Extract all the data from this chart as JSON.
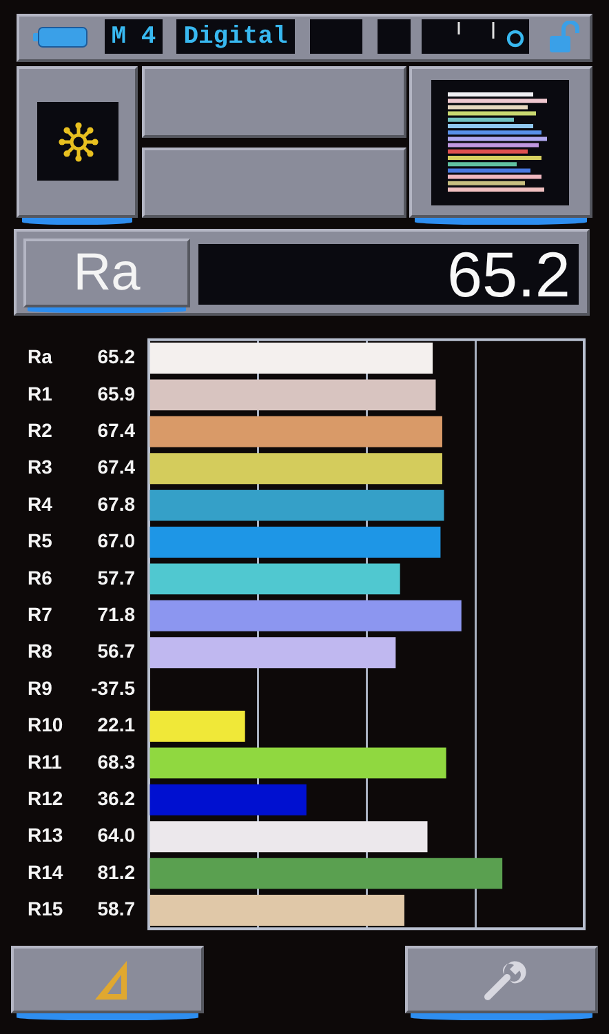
{
  "chart_data": {
    "type": "bar",
    "orientation": "horizontal",
    "categories": [
      "Ra",
      "R1",
      "R2",
      "R3",
      "R4",
      "R5",
      "R6",
      "R7",
      "R8",
      "R9",
      "R10",
      "R11",
      "R12",
      "R13",
      "R14",
      "R15"
    ],
    "values": [
      65.2,
      65.9,
      67.4,
      67.4,
      67.8,
      67.0,
      57.7,
      71.8,
      56.7,
      null,
      22.1,
      68.3,
      36.2,
      64.0,
      81.2,
      58.7
    ],
    "value_labels": [
      "65.2",
      "65.9",
      "67.4",
      "67.4",
      "67.8",
      "67.0",
      "57.7",
      "71.8",
      "56.7",
      "-37.5",
      "22.1",
      "68.3",
      "36.2",
      "64.0",
      "81.2",
      "58.7"
    ],
    "colors": [
      "#f4f0ee",
      "#d8c4c0",
      "#d99a68",
      "#d4cc5c",
      "#35a0c8",
      "#1e96e6",
      "#50c8d0",
      "#8c96f0",
      "#c0b8f0",
      null,
      "#f0e838",
      "#90d840",
      "#0010d0",
      "#ece8ec",
      "#5aa050",
      "#e0c8a8"
    ],
    "xlim": [
      0,
      100
    ],
    "xticks": [
      {
        "value": 0,
        "label": null
      },
      {
        "value": 25,
        "label": null
      },
      {
        "value": 50,
        "label": null
      },
      {
        "value": 75,
        "label": null
      },
      {
        "value": 100,
        "label": null
      }
    ],
    "grid": "x",
    "tick_labels": "y",
    "annotations": [
      "M 4",
      "Digital",
      "Ra",
      "65.2"
    ]
  }
}
